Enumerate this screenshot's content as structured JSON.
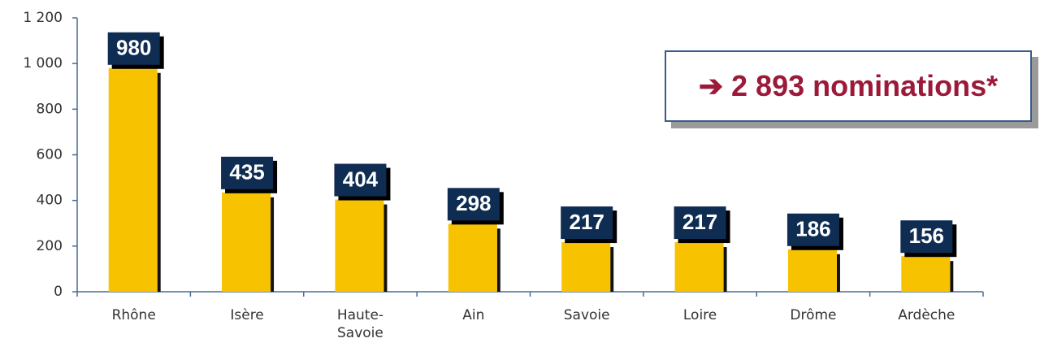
{
  "chart_data": {
    "type": "bar",
    "categories": [
      "Rhône",
      "Isère",
      "Haute-Savoie",
      "Ain",
      "Savoie",
      "Loire",
      "Drôme",
      "Ardèche"
    ],
    "values": [
      980,
      435,
      404,
      298,
      217,
      217,
      186,
      156
    ],
    "color": "#f7c200",
    "ylim": [
      0,
      1200
    ],
    "yticks": [
      0,
      200,
      400,
      600,
      800,
      {
        "value": 1000,
        "label": "1 000"
      },
      {
        "value": 1200,
        "label": "1 200"
      }
    ],
    "annotation": "➔ 2 893 nominations*"
  }
}
